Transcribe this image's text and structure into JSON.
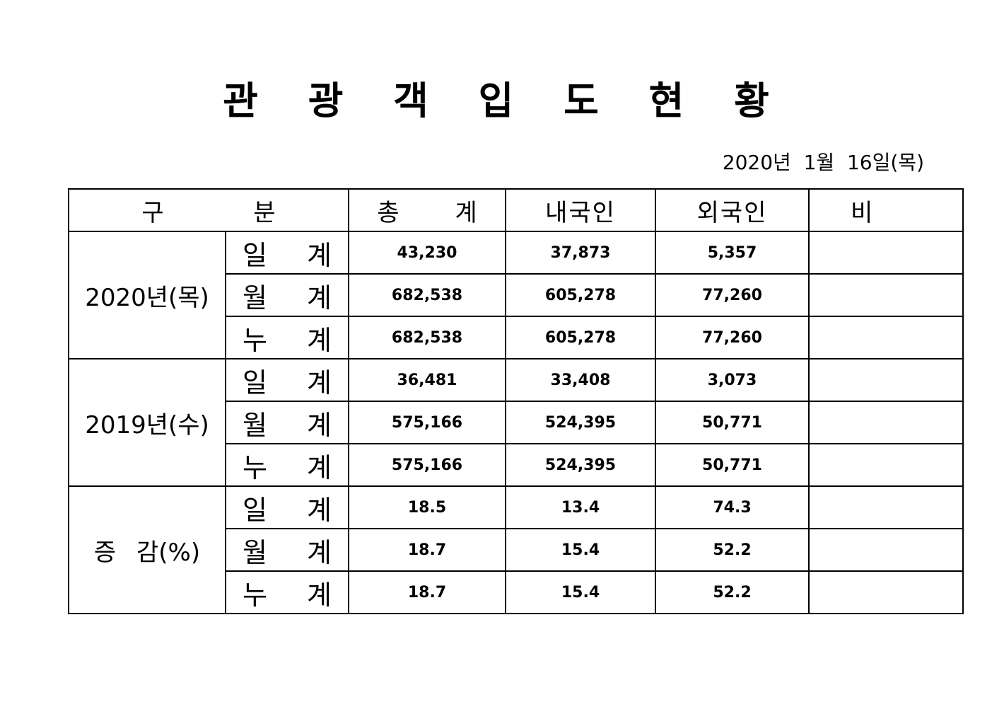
{
  "title": "관 광 객 입 도 현 황",
  "date": "2020년  1월  16일(목)",
  "headers": {
    "category": "구 분",
    "total": "총 계",
    "domestic": "내국인",
    "foreign": "외국인",
    "note": "비 고"
  },
  "sub_labels": {
    "daily": "일 계",
    "monthly": "월 계",
    "cumulative": "누 계"
  },
  "groups": [
    {
      "label": "2020년(목)",
      "rows": [
        {
          "total": "43,230",
          "domestic": "37,873",
          "foreign": "5,357",
          "note": ""
        },
        {
          "total": "682,538",
          "domestic": "605,278",
          "foreign": "77,260",
          "note": ""
        },
        {
          "total": "682,538",
          "domestic": "605,278",
          "foreign": "77,260",
          "note": ""
        }
      ]
    },
    {
      "label": "2019년(수)",
      "rows": [
        {
          "total": "36,481",
          "domestic": "33,408",
          "foreign": "3,073",
          "note": ""
        },
        {
          "total": "575,166",
          "domestic": "524,395",
          "foreign": "50,771",
          "note": ""
        },
        {
          "total": "575,166",
          "domestic": "524,395",
          "foreign": "50,771",
          "note": ""
        }
      ]
    },
    {
      "label": "증 감(%)",
      "rows": [
        {
          "total": "18.5",
          "domestic": "13.4",
          "foreign": "74.3",
          "note": ""
        },
        {
          "total": "18.7",
          "domestic": "15.4",
          "foreign": "52.2",
          "note": ""
        },
        {
          "total": "18.7",
          "domestic": "15.4",
          "foreign": "52.2",
          "note": ""
        }
      ]
    }
  ]
}
